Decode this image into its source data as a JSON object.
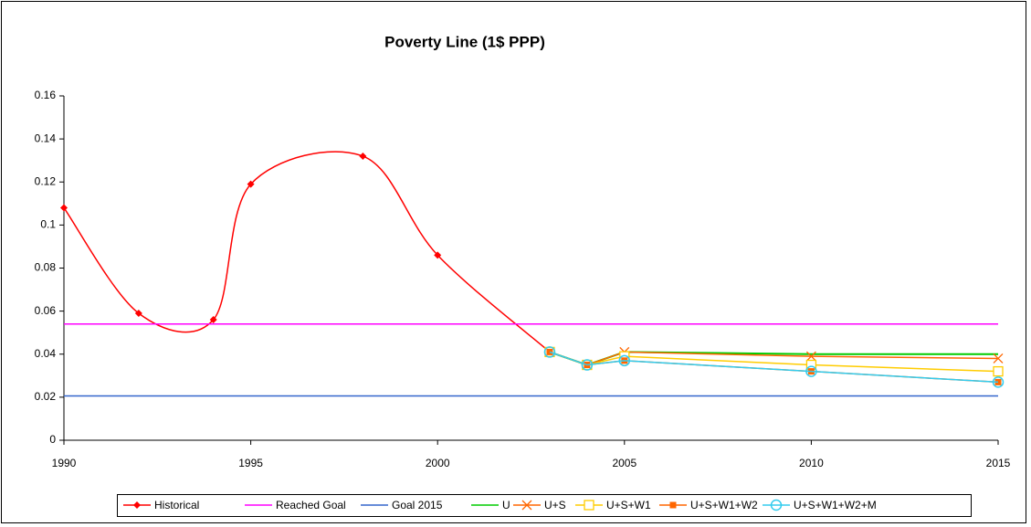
{
  "chart_data": {
    "type": "line",
    "title": "Poverty Line  (1$ PPP)",
    "xlim": [
      1990,
      2015
    ],
    "xticks": [
      1990,
      1995,
      2000,
      2005,
      2010,
      2015
    ],
    "ylim": [
      0,
      0.16
    ],
    "yticks": [
      0,
      0.02,
      0.04,
      0.06,
      0.08,
      0.1,
      0.12,
      0.14,
      0.16
    ],
    "legend": "bottom",
    "series": [
      {
        "name": "Historical",
        "color": "#ff0000",
        "marker": "diamond",
        "smooth": true,
        "x": [
          1990,
          1992,
          1994,
          1995,
          1998,
          2000,
          2003
        ],
        "values": [
          0.108,
          0.059,
          0.056,
          0.119,
          0.132,
          0.086,
          0.041
        ]
      },
      {
        "name": "Reached Goal",
        "color": "#ff00ff",
        "marker": "none",
        "x": [
          1990,
          2015
        ],
        "values": [
          0.054,
          0.054
        ]
      },
      {
        "name": "Goal 2015",
        "color": "#3366cc",
        "marker": "none",
        "x": [
          1990,
          2015
        ],
        "values": [
          0.0206,
          0.0206
        ]
      },
      {
        "name": "U",
        "color": "#00cc00",
        "marker": "none",
        "x": [
          2003,
          2004,
          2005,
          2010,
          2015
        ],
        "values": [
          0.041,
          0.035,
          0.041,
          0.04,
          0.04
        ]
      },
      {
        "name": "U+S",
        "color": "#ff6600",
        "marker": "x",
        "x": [
          2003,
          2004,
          2005,
          2010,
          2015
        ],
        "values": [
          0.041,
          0.035,
          0.041,
          0.039,
          0.038
        ]
      },
      {
        "name": "U+S+W1",
        "color": "#ffcc00",
        "marker": "square-open",
        "x": [
          2003,
          2004,
          2005,
          2010,
          2015
        ],
        "values": [
          0.041,
          0.035,
          0.039,
          0.035,
          0.032
        ]
      },
      {
        "name": "U+S+W1+W2",
        "color": "#ff6600",
        "marker": "square",
        "x": [
          2003,
          2004,
          2005,
          2010,
          2015
        ],
        "values": [
          0.041,
          0.035,
          0.037,
          0.032,
          0.027
        ]
      },
      {
        "name": "U+S+W1+W2+M",
        "color": "#33ccee",
        "marker": "circle-open",
        "x": [
          2003,
          2004,
          2005,
          2010,
          2015
        ],
        "values": [
          0.041,
          0.035,
          0.037,
          0.032,
          0.027
        ]
      }
    ]
  }
}
